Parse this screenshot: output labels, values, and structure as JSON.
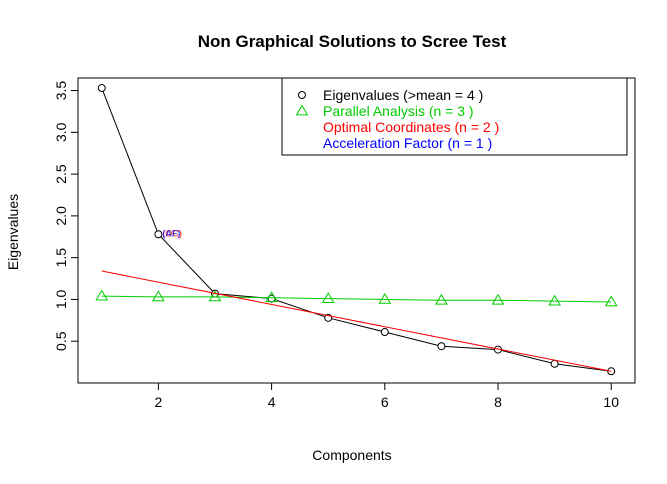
{
  "chart_data": {
    "type": "line",
    "title": "Non Graphical Solutions to Scree Test",
    "xlabel": "Components",
    "ylabel": "Eigenvalues",
    "xlim": [
      0.58,
      10.42
    ],
    "ylim": [
      0.0,
      3.65
    ],
    "xticks": [
      2,
      4,
      6,
      8,
      10
    ],
    "yticks": [
      0.5,
      1.0,
      1.5,
      2.0,
      2.5,
      3.0,
      3.5
    ],
    "xtick_labels": [
      "2",
      "4",
      "6",
      "8",
      "10"
    ],
    "ytick_labels": [
      "0.5",
      "1.0",
      "1.5",
      "2.0",
      "2.5",
      "3.0",
      "3.5"
    ],
    "grid": false,
    "legend_position": "top-right",
    "series": [
      {
        "name": "Eigenvalues (>mean  =  4 )",
        "color": "#000000",
        "marker": "circle",
        "x": [
          1,
          2,
          3,
          4,
          5,
          6,
          7,
          8,
          9,
          10
        ],
        "values": [
          3.53,
          1.78,
          1.07,
          1.01,
          0.78,
          0.61,
          0.44,
          0.4,
          0.23,
          0.14
        ]
      },
      {
        "name": "Parallel Analysis (n =  3 )",
        "color": "#00cd00",
        "marker": "triangle",
        "x": [
          1,
          2,
          3,
          4,
          5,
          6,
          7,
          8,
          9,
          10
        ],
        "values": [
          1.04,
          1.03,
          1.03,
          1.02,
          1.01,
          1.0,
          0.99,
          0.99,
          0.98,
          0.97
        ]
      },
      {
        "name": "Optimal Coordinates (n =  2 )",
        "color": "#ff0000",
        "marker": "none",
        "x": [
          1,
          10
        ],
        "values": [
          1.34,
          0.14
        ]
      },
      {
        "name": "Acceleration Factor (n =  1 )",
        "color": "#0000ff",
        "marker": "none",
        "x": [],
        "values": []
      }
    ],
    "annotations": [
      {
        "text": "(OC)",
        "x": 2,
        "y": 1.78,
        "color": "#ff0000"
      },
      {
        "text": "(AF)",
        "x": 2,
        "y": 1.78,
        "color": "#0000ff"
      }
    ]
  }
}
